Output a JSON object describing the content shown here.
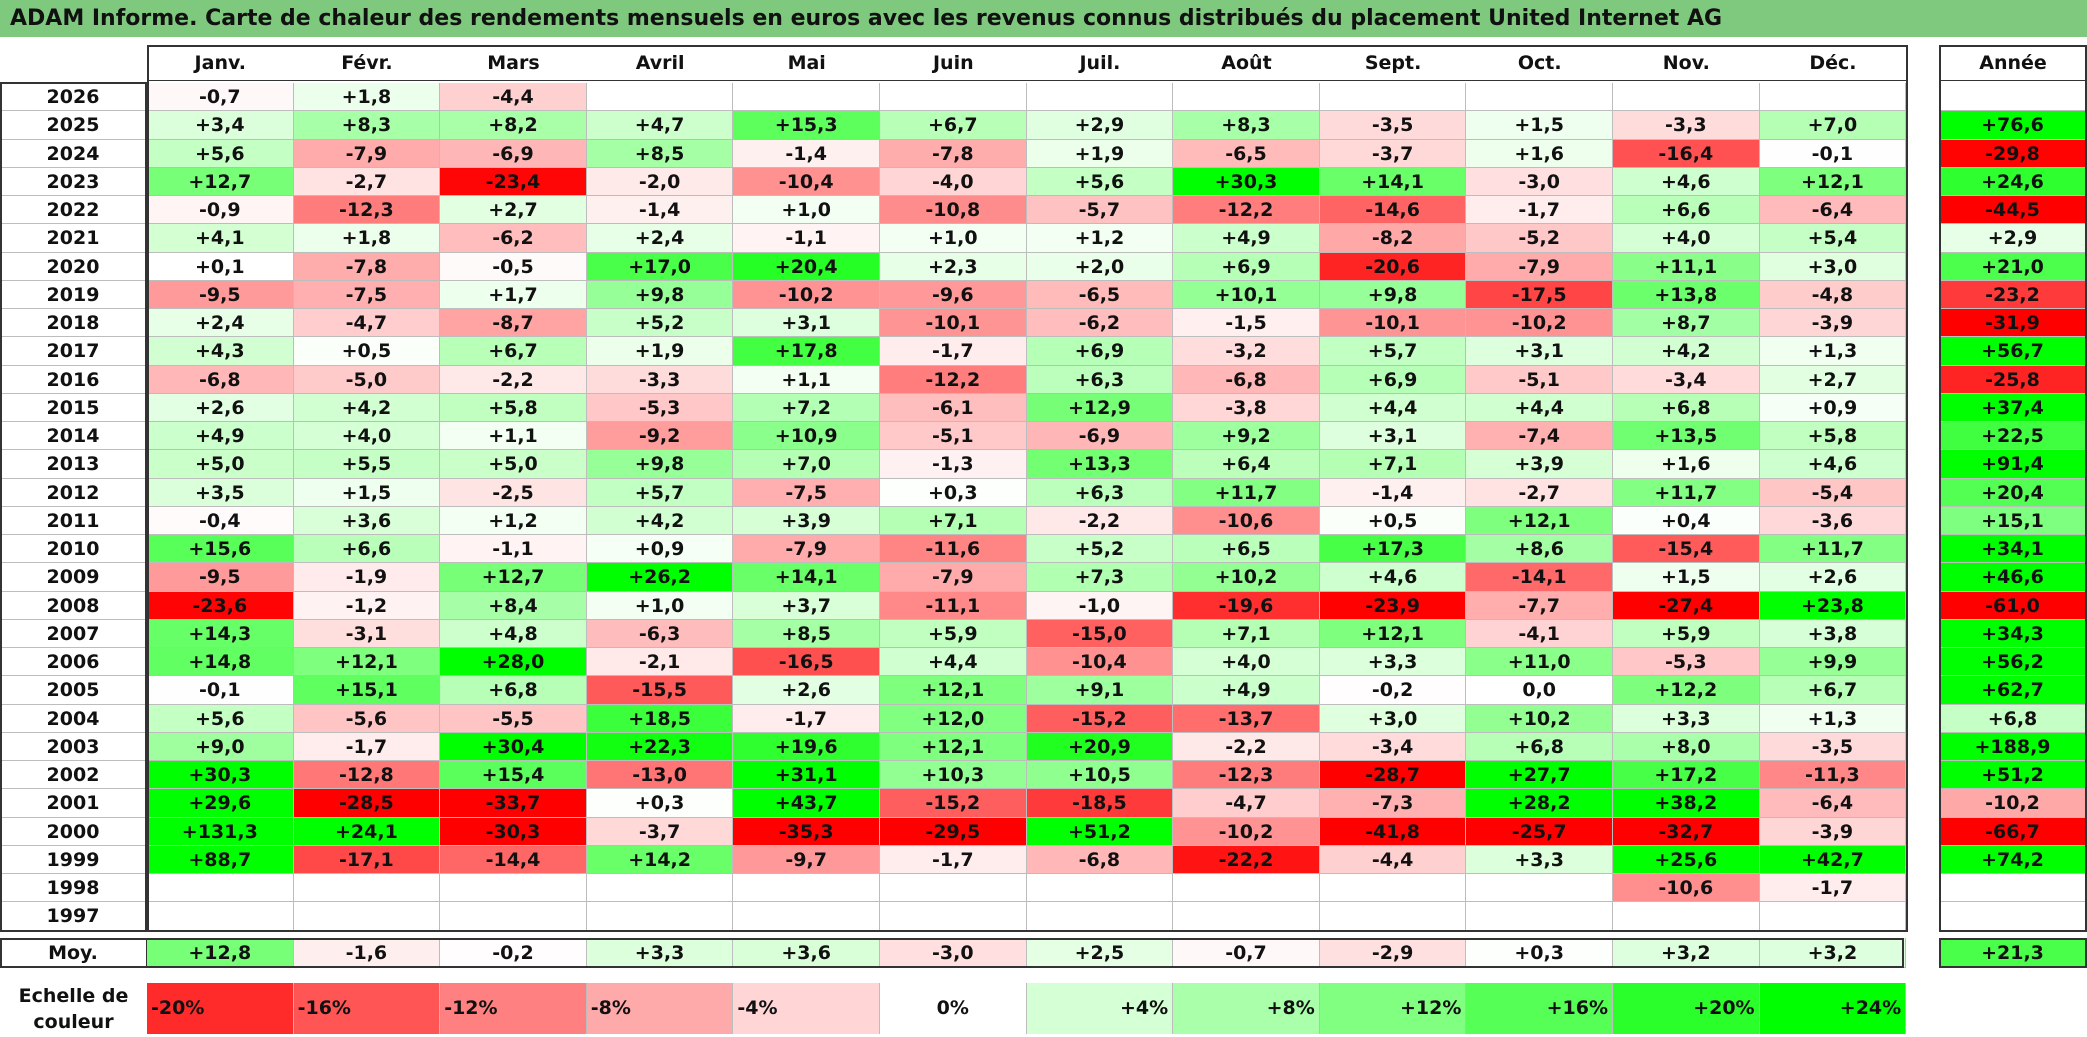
{
  "title": "ADAM Informe. Carte de chaleur des rendements mensuels en euros avec les revenus connus distribués du placement United Internet AG",
  "chart_data": {
    "type": "heatmap",
    "title": "ADAM Informe. Carte de chaleur des rendements mensuels en euros avec les revenus connus distribués du placement United Internet AG",
    "months": [
      "Janv.",
      "Févr.",
      "Mars",
      "Avril",
      "Mai",
      "Juin",
      "Juil.",
      "Août",
      "Sept.",
      "Oct.",
      "Nov.",
      "Déc."
    ],
    "annual_header": "Année",
    "rows": [
      {
        "year": "2026",
        "values": [
          "-0,7",
          "+1,8",
          "-4,4",
          "",
          "",
          "",
          "",
          "",
          "",
          "",
          "",
          ""
        ],
        "annual": ""
      },
      {
        "year": "2025",
        "values": [
          "+3,4",
          "+8,3",
          "+8,2",
          "+4,7",
          "+15,3",
          "+6,7",
          "+2,9",
          "+8,3",
          "-3,5",
          "+1,5",
          "-3,3",
          "+7,0"
        ],
        "annual": "+76,6"
      },
      {
        "year": "2024",
        "values": [
          "+5,6",
          "-7,9",
          "-6,9",
          "+8,5",
          "-1,4",
          "-7,8",
          "+1,9",
          "-6,5",
          "-3,7",
          "+1,6",
          "-16,4",
          "-0,1"
        ],
        "annual": "-29,8"
      },
      {
        "year": "2023",
        "values": [
          "+12,7",
          "-2,7",
          "-23,4",
          "-2,0",
          "-10,4",
          "-4,0",
          "+5,6",
          "+30,3",
          "+14,1",
          "-3,0",
          "+4,6",
          "+12,1"
        ],
        "annual": "+24,6"
      },
      {
        "year": "2022",
        "values": [
          "-0,9",
          "-12,3",
          "+2,7",
          "-1,4",
          "+1,0",
          "-10,8",
          "-5,7",
          "-12,2",
          "-14,6",
          "-1,7",
          "+6,6",
          "-6,4"
        ],
        "annual": "-44,5"
      },
      {
        "year": "2021",
        "values": [
          "+4,1",
          "+1,8",
          "-6,2",
          "+2,4",
          "-1,1",
          "+1,0",
          "+1,2",
          "+4,9",
          "-8,2",
          "-5,2",
          "+4,0",
          "+5,4"
        ],
        "annual": "+2,9"
      },
      {
        "year": "2020",
        "values": [
          "+0,1",
          "-7,8",
          "-0,5",
          "+17,0",
          "+20,4",
          "+2,3",
          "+2,0",
          "+6,9",
          "-20,6",
          "-7,9",
          "+11,1",
          "+3,0"
        ],
        "annual": "+21,0"
      },
      {
        "year": "2019",
        "values": [
          "-9,5",
          "-7,5",
          "+1,7",
          "+9,8",
          "-10,2",
          "-9,6",
          "-6,5",
          "+10,1",
          "+9,8",
          "-17,5",
          "+13,8",
          "-4,8"
        ],
        "annual": "-23,2"
      },
      {
        "year": "2018",
        "values": [
          "+2,4",
          "-4,7",
          "-8,7",
          "+5,2",
          "+3,1",
          "-10,1",
          "-6,2",
          "-1,5",
          "-10,1",
          "-10,2",
          "+8,7",
          "-3,9"
        ],
        "annual": "-31,9"
      },
      {
        "year": "2017",
        "values": [
          "+4,3",
          "+0,5",
          "+6,7",
          "+1,9",
          "+17,8",
          "-1,7",
          "+6,9",
          "-3,2",
          "+5,7",
          "+3,1",
          "+4,2",
          "+1,3"
        ],
        "annual": "+56,7"
      },
      {
        "year": "2016",
        "values": [
          "-6,8",
          "-5,0",
          "-2,2",
          "-3,3",
          "+1,1",
          "-12,2",
          "+6,3",
          "-6,8",
          "+6,9",
          "-5,1",
          "-3,4",
          "+2,7"
        ],
        "annual": "-25,8"
      },
      {
        "year": "2015",
        "values": [
          "+2,6",
          "+4,2",
          "+5,8",
          "-5,3",
          "+7,2",
          "-6,1",
          "+12,9",
          "-3,8",
          "+4,4",
          "+4,4",
          "+6,8",
          "+0,9"
        ],
        "annual": "+37,4"
      },
      {
        "year": "2014",
        "values": [
          "+4,9",
          "+4,0",
          "+1,1",
          "-9,2",
          "+10,9",
          "-5,1",
          "-6,9",
          "+9,2",
          "+3,1",
          "-7,4",
          "+13,5",
          "+5,8"
        ],
        "annual": "+22,5"
      },
      {
        "year": "2013",
        "values": [
          "+5,0",
          "+5,5",
          "+5,0",
          "+9,8",
          "+7,0",
          "-1,3",
          "+13,3",
          "+6,4",
          "+7,1",
          "+3,9",
          "+1,6",
          "+4,6"
        ],
        "annual": "+91,4"
      },
      {
        "year": "2012",
        "values": [
          "+3,5",
          "+1,5",
          "-2,5",
          "+5,7",
          "-7,5",
          "+0,3",
          "+6,3",
          "+11,7",
          "-1,4",
          "-2,7",
          "+11,7",
          "-5,4"
        ],
        "annual": "+20,4"
      },
      {
        "year": "2011",
        "values": [
          "-0,4",
          "+3,6",
          "+1,2",
          "+4,2",
          "+3,9",
          "+7,1",
          "-2,2",
          "-10,6",
          "+0,5",
          "+12,1",
          "+0,4",
          "-3,6"
        ],
        "annual": "+15,1"
      },
      {
        "year": "2010",
        "values": [
          "+15,6",
          "+6,6",
          "-1,1",
          "+0,9",
          "-7,9",
          "-11,6",
          "+5,2",
          "+6,5",
          "+17,3",
          "+8,6",
          "-15,4",
          "+11,7"
        ],
        "annual": "+34,1"
      },
      {
        "year": "2009",
        "values": [
          "-9,5",
          "-1,9",
          "+12,7",
          "+26,2",
          "+14,1",
          "-7,9",
          "+7,3",
          "+10,2",
          "+4,6",
          "-14,1",
          "+1,5",
          "+2,6"
        ],
        "annual": "+46,6"
      },
      {
        "year": "2008",
        "values": [
          "-23,6",
          "-1,2",
          "+8,4",
          "+1,0",
          "+3,7",
          "-11,1",
          "-1,0",
          "-19,6",
          "-23,9",
          "-7,7",
          "-27,4",
          "+23,8"
        ],
        "annual": "-61,0"
      },
      {
        "year": "2007",
        "values": [
          "+14,3",
          "-3,1",
          "+4,8",
          "-6,3",
          "+8,5",
          "+5,9",
          "-15,0",
          "+7,1",
          "+12,1",
          "-4,1",
          "+5,9",
          "+3,8"
        ],
        "annual": "+34,3"
      },
      {
        "year": "2006",
        "values": [
          "+14,8",
          "+12,1",
          "+28,0",
          "-2,1",
          "-16,5",
          "+4,4",
          "-10,4",
          "+4,0",
          "+3,3",
          "+11,0",
          "-5,3",
          "+9,9"
        ],
        "annual": "+56,2"
      },
      {
        "year": "2005",
        "values": [
          "-0,1",
          "+15,1",
          "+6,8",
          "-15,5",
          "+2,6",
          "+12,1",
          "+9,1",
          "+4,9",
          "-0,2",
          "0,0",
          "+12,2",
          "+6,7"
        ],
        "annual": "+62,7"
      },
      {
        "year": "2004",
        "values": [
          "+5,6",
          "-5,6",
          "-5,5",
          "+18,5",
          "-1,7",
          "+12,0",
          "-15,2",
          "-13,7",
          "+3,0",
          "+10,2",
          "+3,3",
          "+1,3"
        ],
        "annual": "+6,8"
      },
      {
        "year": "2003",
        "values": [
          "+9,0",
          "-1,7",
          "+30,4",
          "+22,3",
          "+19,6",
          "+12,1",
          "+20,9",
          "-2,2",
          "-3,4",
          "+6,8",
          "+8,0",
          "-3,5"
        ],
        "annual": "+188,9"
      },
      {
        "year": "2002",
        "values": [
          "+30,3",
          "-12,8",
          "+15,4",
          "-13,0",
          "+31,1",
          "+10,3",
          "+10,5",
          "-12,3",
          "-28,7",
          "+27,7",
          "+17,2",
          "-11,3"
        ],
        "annual": "+51,2"
      },
      {
        "year": "2001",
        "values": [
          "+29,6",
          "-28,5",
          "-33,7",
          "+0,3",
          "+43,7",
          "-15,2",
          "-18,5",
          "-4,7",
          "-7,3",
          "+28,2",
          "+38,2",
          "-6,4"
        ],
        "annual": "-10,2"
      },
      {
        "year": "2000",
        "values": [
          "+131,3",
          "+24,1",
          "-30,3",
          "-3,7",
          "-35,3",
          "-29,5",
          "+51,2",
          "-10,2",
          "-41,8",
          "-25,7",
          "-32,7",
          "-3,9"
        ],
        "annual": "-66,7"
      },
      {
        "year": "1999",
        "values": [
          "+88,7",
          "-17,1",
          "-14,4",
          "+14,2",
          "-9,7",
          "-1,7",
          "-6,8",
          "-22,2",
          "-4,4",
          "+3,3",
          "+25,6",
          "+42,7"
        ],
        "annual": "+74,2"
      },
      {
        "year": "1998",
        "values": [
          "",
          "",
          "",
          "",
          "",
          "",
          "",
          "",
          "",
          "",
          "-10,6",
          "-1,7"
        ],
        "annual": ""
      },
      {
        "year": "1997",
        "values": [
          "",
          "",
          "",
          "",
          "",
          "",
          "",
          "",
          "",
          "",
          "",
          ""
        ],
        "annual": ""
      }
    ],
    "average": {
      "label": "Moy.",
      "values": [
        "+12,8",
        "-1,6",
        "-0,2",
        "+3,3",
        "+3,6",
        "-3,0",
        "+2,5",
        "-0,7",
        "-2,9",
        "+0,3",
        "+3,2",
        "+3,2"
      ],
      "annual": "+21,3"
    },
    "scale": {
      "label_line1": "Echelle de",
      "label_line2": "couleur",
      "steps": [
        -20,
        -16,
        -12,
        -8,
        -4,
        0,
        4,
        8,
        12,
        16,
        20,
        24
      ],
      "labels": [
        "-20%",
        "-16%",
        "-12%",
        "-8%",
        "-4%",
        "0%",
        "+4%",
        "+8%",
        "+12%",
        "+16%",
        "+20%",
        "+24%"
      ]
    },
    "colors": {
      "negative": "#ff0000",
      "positive": "#00ff00",
      "neutral": "#ffffff",
      "title_bg": "#7fc97f"
    }
  }
}
